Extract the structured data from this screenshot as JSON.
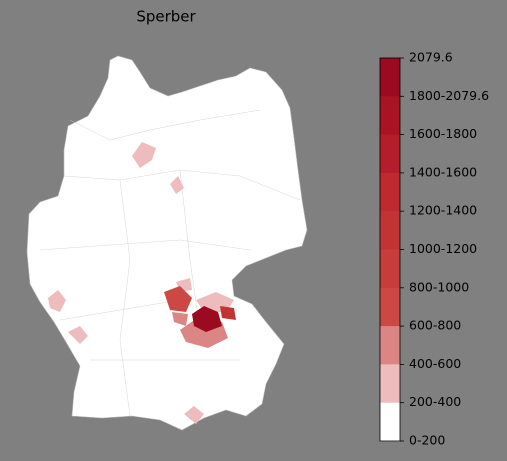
{
  "title": "Sperber",
  "legend": {
    "labels": [
      "2079.6",
      "1800-2079.6",
      "1600-1800",
      "1400-1600",
      "1200-1400",
      "1000-1200",
      "800-1000",
      "600-800",
      "400-600",
      "200-400",
      "0-200"
    ],
    "colors": [
      "#9b0a20",
      "#a91424",
      "#b41d2a",
      "#bd2a2f",
      "#c23434",
      "#c63d3b",
      "#cb4844",
      "#db8585",
      "#eebcbc",
      "#ffffff"
    ]
  }
}
